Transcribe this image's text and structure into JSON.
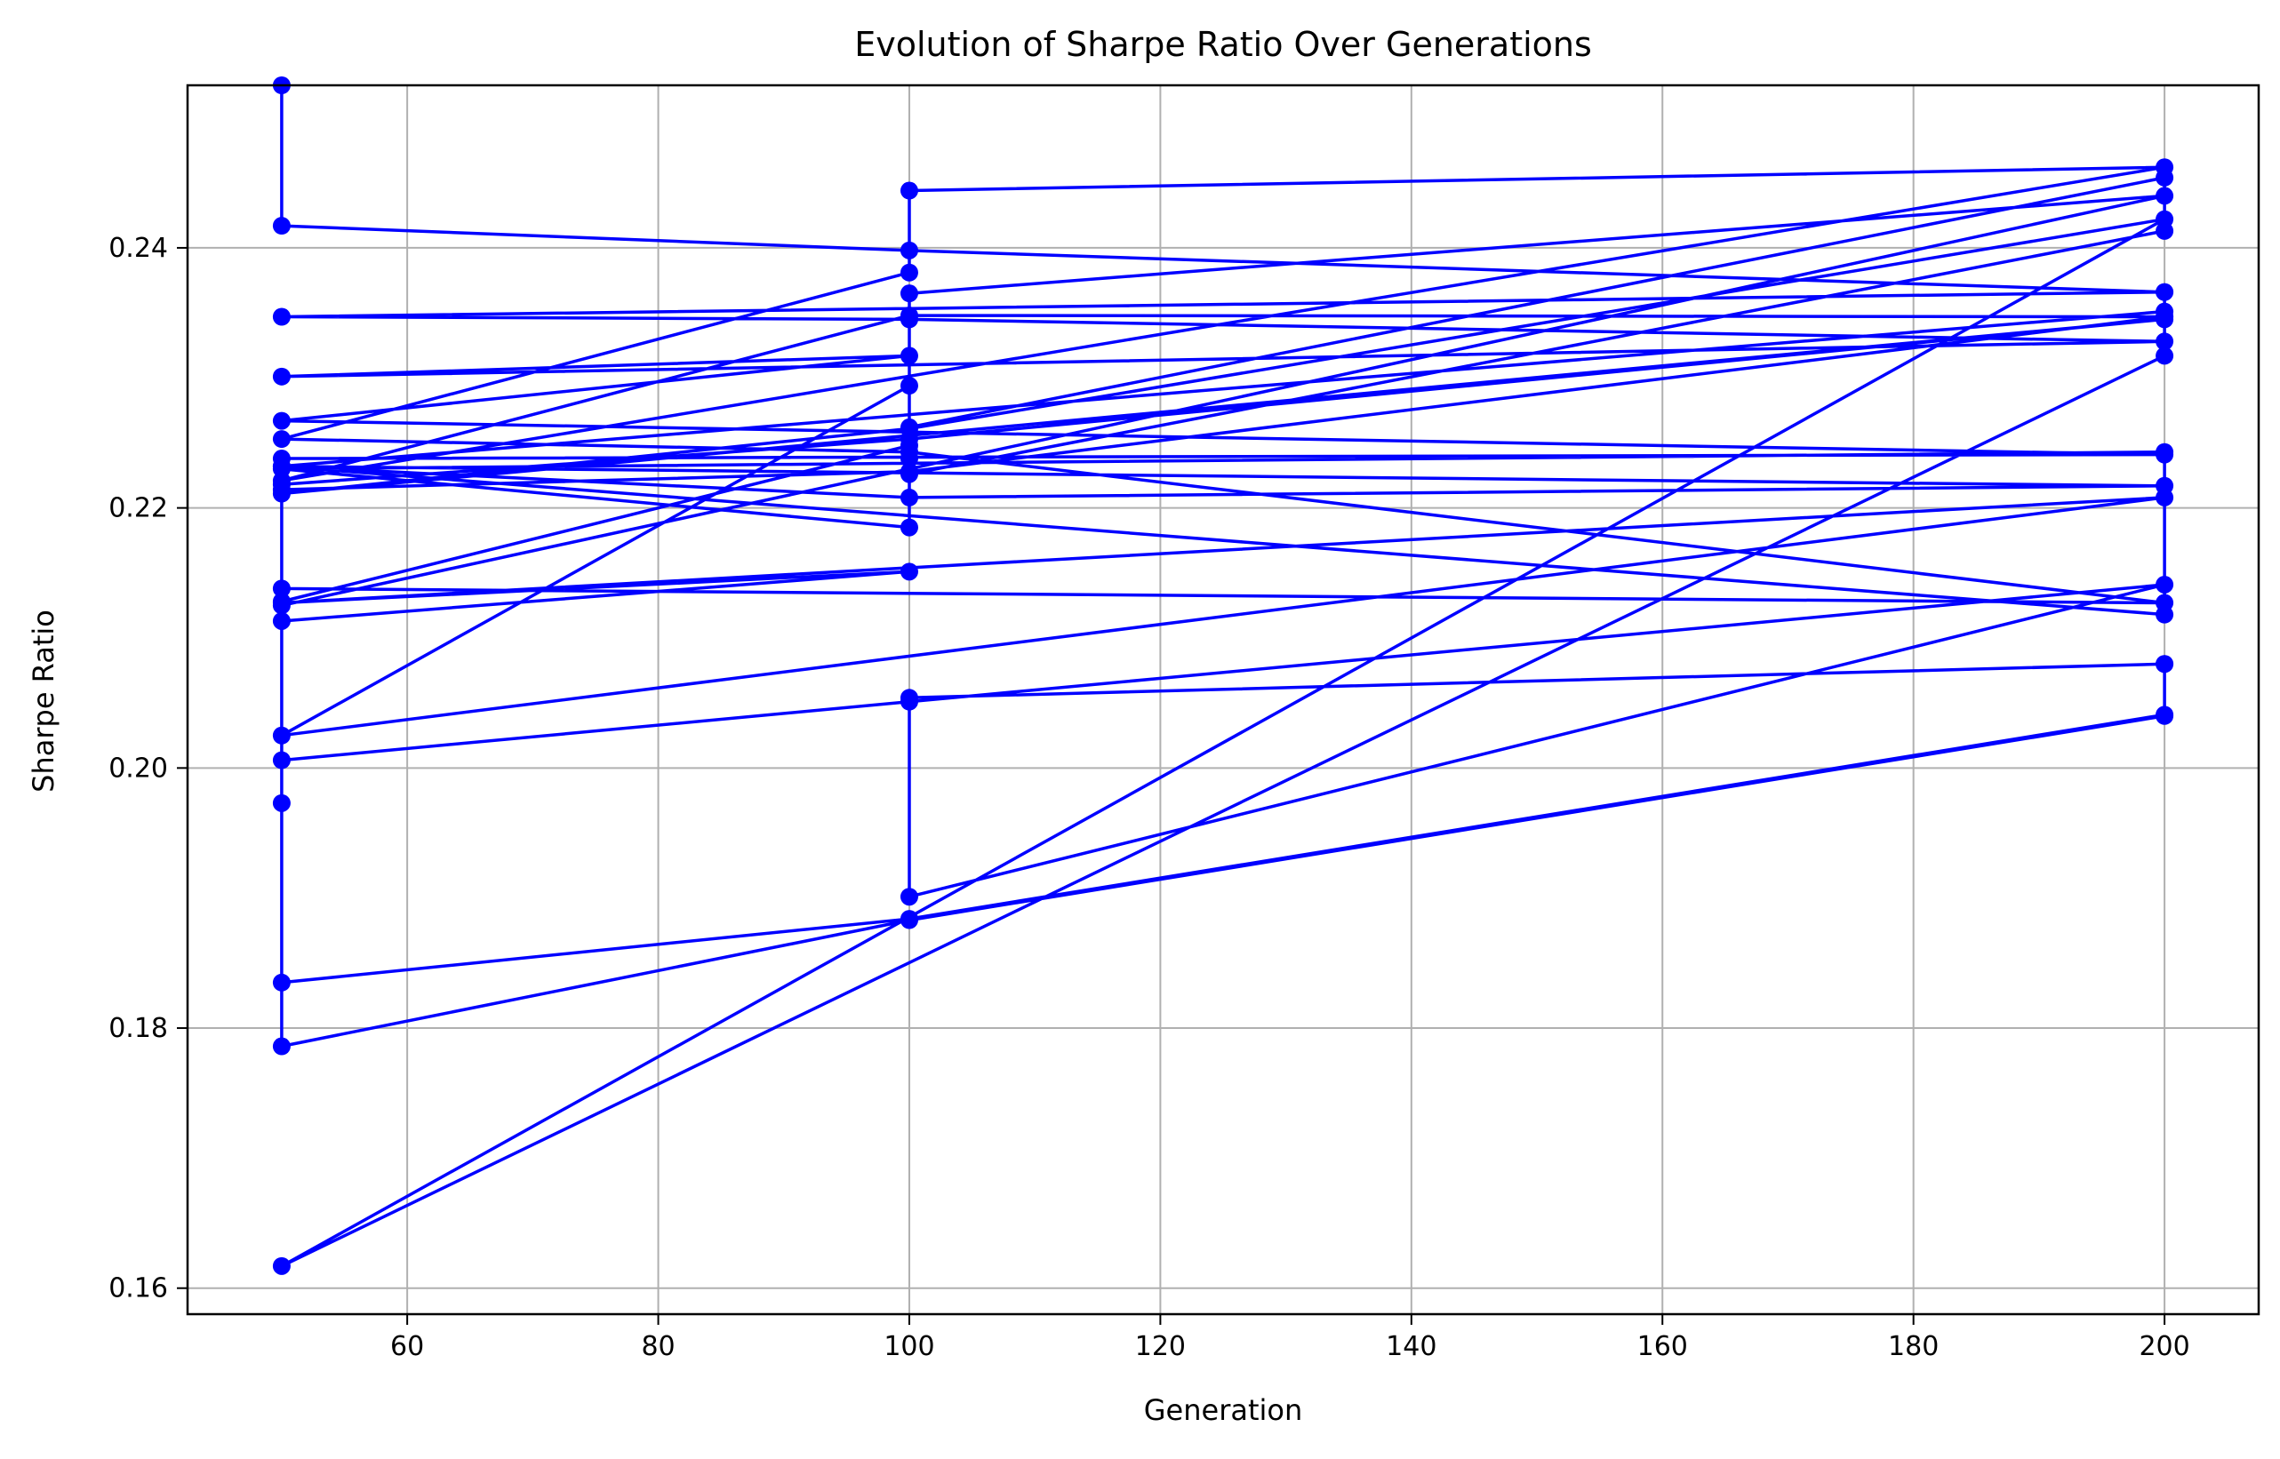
{
  "chart_data": {
    "type": "line",
    "title": "Evolution of Sharpe Ratio Over Generations",
    "xlabel": "Generation",
    "ylabel": "Sharpe Ratio",
    "xlim": [
      42.5,
      207.5
    ],
    "ylim": [
      0.158,
      0.2525
    ],
    "xticks": [
      60,
      80,
      100,
      120,
      140,
      160,
      180,
      200
    ],
    "yticks": [
      0.16,
      0.18,
      0.2,
      0.22,
      0.24
    ],
    "xtick_labels": [
      "60",
      "80",
      "100",
      "120",
      "140",
      "160",
      "180",
      "200"
    ],
    "ytick_labels": [
      "0.16",
      "0.18",
      "0.20",
      "0.22",
      "0.24"
    ],
    "grid": true,
    "legend": "none",
    "series_color": "#0000ff",
    "marker": "circle",
    "x": [
      50,
      50,
      100,
      200,
      200,
      100,
      50,
      50,
      200,
      100,
      50,
      100,
      100,
      200,
      50,
      100,
      200,
      200,
      50,
      100,
      200,
      50,
      100,
      50,
      200,
      50,
      50,
      100,
      200,
      50,
      100,
      200,
      50,
      200,
      200,
      50,
      200,
      100,
      50,
      200,
      200,
      50,
      100,
      100,
      100,
      200,
      50,
      50,
      100,
      50,
      200,
      50,
      100,
      100,
      200,
      200,
      100,
      100,
      50,
      50,
      100,
      200,
      200,
      100,
      100,
      100,
      200,
      50,
      50,
      50,
      100,
      200,
      200
    ],
    "y": [
      0.2525,
      0.2417,
      0.2398,
      0.2366,
      0.2347,
      0.2228,
      0.2214,
      0.2138,
      0.2127,
      0.2243,
      0.2253,
      0.2381,
      0.2444,
      0.2462,
      0.2221,
      0.2348,
      0.2347,
      0.2366,
      0.2347,
      0.2345,
      0.2328,
      0.2301,
      0.2317,
      0.2267,
      0.2241,
      0.2238,
      0.2218,
      0.2253,
      0.2345,
      0.2211,
      0.2261,
      0.2422,
      0.1617,
      0.2317,
      0.2351,
      0.2232,
      0.2217,
      0.2208,
      0.2232,
      0.2118,
      0.2243,
      0.223,
      0.2185,
      0.2238,
      0.2365,
      0.244,
      0.2125,
      0.2113,
      0.2151,
      0.2127,
      0.2208,
      0.2025,
      0.2294,
      0.2226,
      0.2413,
      0.2454,
      0.2262,
      0.2248,
      0.2128,
      0.1786,
      0.1883,
      0.204,
      0.208,
      0.2054,
      0.2051,
      0.1901,
      0.2141,
      0.2006,
      0.1973,
      0.1835,
      0.1884,
      0.2041,
      0.208
    ]
  }
}
